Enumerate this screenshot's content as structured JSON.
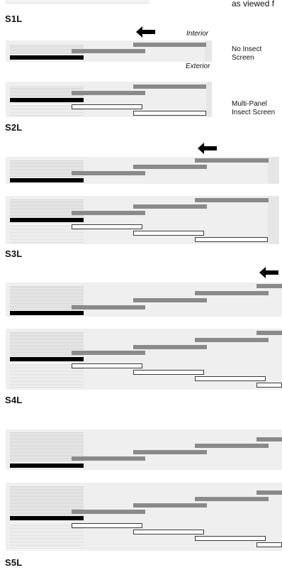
{
  "header": {
    "caption_fragment": "as viewed f"
  },
  "legend": {
    "interior": "Interior",
    "exterior": "Exterior",
    "no_screen": [
      "No Insect",
      "Screen"
    ],
    "multi_screen": [
      "Multi-Panel",
      "Insect Screen"
    ]
  },
  "configurations": [
    {
      "code": "S1L"
    },
    {
      "code": "S2L"
    },
    {
      "code": "S3L"
    },
    {
      "code": "S4L"
    },
    {
      "code": "S5L"
    }
  ],
  "colors": {
    "sliding_panel": "#8a8a8a",
    "fixed_panel": "#000000",
    "screen_panel": "#ffffff",
    "wall_pocket": "#cfcfcf",
    "track_background": "#efefef"
  },
  "icons": {
    "direction": "arrow-left-icon"
  }
}
